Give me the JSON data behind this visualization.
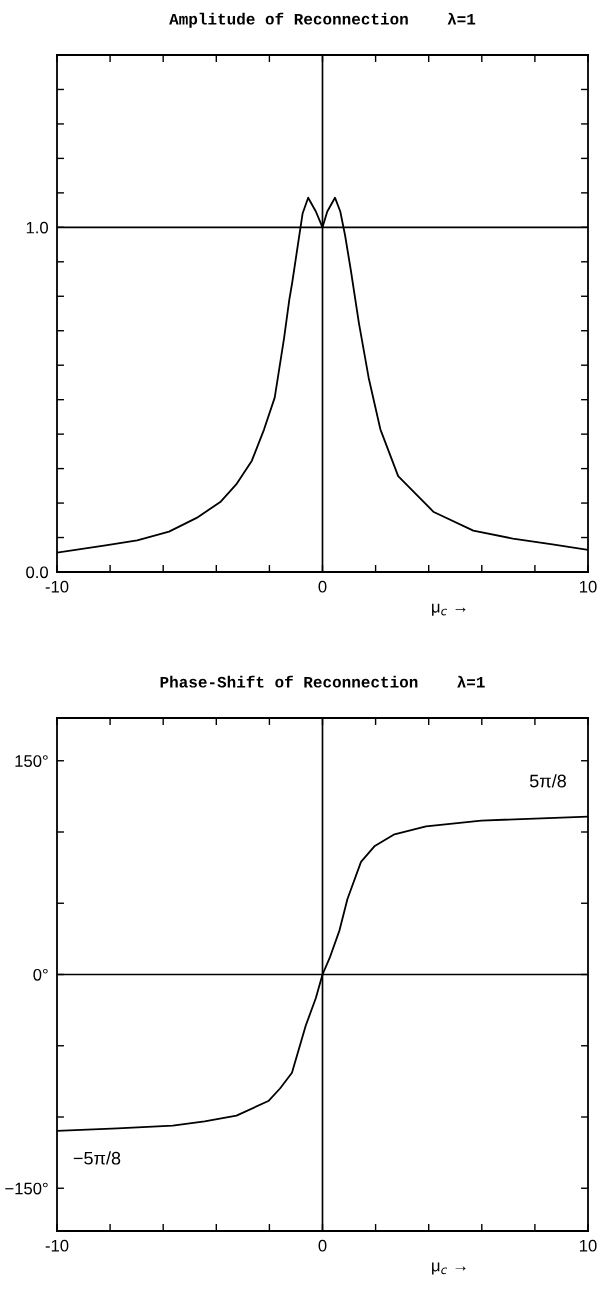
{
  "chart_data": [
    {
      "type": "line",
      "title": "Amplitude of Reconnection    λ=1",
      "xlabel": "μ$_{c}$ →",
      "x": [
        -10,
        -8.17,
        -6.98,
        -5.78,
        -4.74,
        -3.85,
        -3.25,
        -2.66,
        -2.2,
        -1.8,
        -1.45,
        -1.25,
        -1.14,
        -0.75,
        -0.54,
        -0.25,
        0,
        0.18,
        0.47,
        0.67,
        0.85,
        1.07,
        1.37,
        1.74,
        2.18,
        2.85,
        4.19,
        5.68,
        7.17,
        8.66,
        10
      ],
      "series": [
        {
          "color": "#000000",
          "values": [
            0.056,
            0.077,
            0.092,
            0.117,
            0.157,
            0.203,
            0.254,
            0.323,
            0.414,
            0.506,
            0.677,
            0.79,
            0.84,
            1.04,
            1.086,
            1.046,
            1.0,
            1.046,
            1.086,
            1.046,
            0.977,
            0.874,
            0.723,
            0.563,
            0.414,
            0.278,
            0.174,
            0.12,
            0.097,
            0.08,
            0.064
          ]
        }
      ],
      "xlim": [
        -10,
        10
      ],
      "ylim": [
        0,
        1.5
      ],
      "xticks": [
        -10,
        {
          "value": -8,
          "label": null
        },
        {
          "value": -6,
          "label": null
        },
        {
          "value": -4,
          "label": null
        },
        {
          "value": -2,
          "label": null
        },
        0,
        {
          "value": 2,
          "label": null
        },
        {
          "value": 4,
          "label": null
        },
        {
          "value": 6,
          "label": null
        },
        {
          "value": 8,
          "label": null
        },
        10
      ],
      "yticks": [
        {
          "value": 0,
          "label": "0.0"
        },
        {
          "value": 0.1,
          "label": null
        },
        {
          "value": 0.2,
          "label": null
        },
        {
          "value": 0.3,
          "label": null
        },
        {
          "value": 0.4,
          "label": null
        },
        {
          "value": 0.5,
          "label": null
        },
        {
          "value": 0.6,
          "label": null
        },
        {
          "value": 0.7,
          "label": null
        },
        {
          "value": 0.8,
          "label": null
        },
        {
          "value": 0.9,
          "label": null
        },
        {
          "value": 1,
          "label": "1.0"
        },
        {
          "value": 1.1,
          "label": null
        },
        {
          "value": 1.2,
          "label": null
        },
        {
          "value": 1.3,
          "label": null
        },
        {
          "value": 1.4,
          "label": null
        }
      ],
      "ref_lines": [
        {
          "axis": "x",
          "value": 0,
          "color": "#000000"
        },
        {
          "axis": "y",
          "value": 1,
          "color": "#000000"
        }
      ]
    },
    {
      "type": "line",
      "title": "Phase-Shift of Reconnection    λ=1",
      "xlabel": "μ$_{c}$ →",
      "x": [
        -10,
        -7.72,
        -5.64,
        -4.44,
        -3.24,
        -2.04,
        -1.6,
        -1.15,
        -0.63,
        -0.25,
        0,
        0.27,
        0.64,
        0.94,
        1.45,
        1.97,
        2.71,
        3.9,
        5.98,
        10
      ],
      "series": [
        {
          "color": "#000000",
          "values": [
            -109.7,
            -108,
            -106,
            -103,
            -99,
            -88.8,
            -80,
            -69,
            -35.8,
            -16.5,
            0,
            11.6,
            31,
            53,
            79,
            90.2,
            98.4,
            104,
            108,
            110.8
          ]
        }
      ],
      "xlim": [
        -10,
        10
      ],
      "ylim": [
        -180,
        180
      ],
      "xticks": [
        -10,
        {
          "value": -8,
          "label": null
        },
        {
          "value": -6,
          "label": null
        },
        {
          "value": -4,
          "label": null
        },
        {
          "value": -2,
          "label": null
        },
        0,
        {
          "value": 2,
          "label": null
        },
        {
          "value": 4,
          "label": null
        },
        {
          "value": 6,
          "label": null
        },
        {
          "value": 8,
          "label": null
        },
        10
      ],
      "yticks": [
        {
          "value": -150,
          "label": "−150°"
        },
        {
          "value": -100,
          "label": null
        },
        {
          "value": -50,
          "label": null
        },
        {
          "value": 0,
          "label": "0°"
        },
        {
          "value": 50,
          "label": null
        },
        {
          "value": 100,
          "label": null
        },
        {
          "value": 150,
          "label": "150°"
        }
      ],
      "ref_lines": [
        {
          "axis": "x",
          "value": 0,
          "color": "#000000"
        },
        {
          "axis": "y",
          "value": 0,
          "color": "#000000"
        }
      ],
      "annotations": [
        "5π/8",
        "−5π/8"
      ]
    }
  ]
}
